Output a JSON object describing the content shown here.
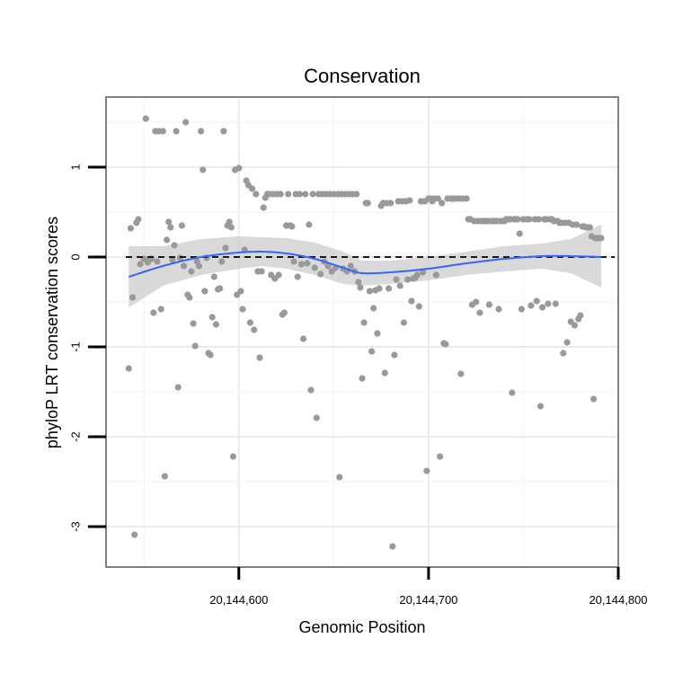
{
  "chart_data": {
    "type": "scatter",
    "title": "Conservation",
    "xlabel": "Genomic Position",
    "ylabel": "phyloP LRT conservation scores",
    "xlim": [
      20144530,
      20144800
    ],
    "ylim": [
      -3.45,
      1.78
    ],
    "x_ticks": [
      {
        "value": 20144600,
        "label": "20,144,600"
      },
      {
        "value": 20144700,
        "label": "20,144,700"
      },
      {
        "value": 20144800,
        "label": "20,144,800"
      }
    ],
    "y_ticks": [
      {
        "value": -3,
        "label": "-3"
      },
      {
        "value": -2,
        "label": "-2"
      },
      {
        "value": -1,
        "label": "-1"
      },
      {
        "value": 0,
        "label": "0"
      },
      {
        "value": 1,
        "label": "1"
      }
    ],
    "reference_line": {
      "y": 0,
      "style": "dashed",
      "color": "#000000"
    },
    "point_color": "#999999",
    "smooth_color": "#3366FF",
    "ribbon_color": "#CCCCCC",
    "points": [
      [
        20144542,
        -1.24
      ],
      [
        20144543,
        0.32
      ],
      [
        20144544,
        -0.45
      ],
      [
        20144545,
        -3.09
      ],
      [
        20144546,
        0.38
      ],
      [
        20144547,
        0.42
      ],
      [
        20144548,
        -0.08
      ],
      [
        20144550,
        -0.02
      ],
      [
        20144551,
        1.54
      ],
      [
        20144552,
        -0.06
      ],
      [
        20144553,
        -0.03
      ],
      [
        20144554,
        -0.02
      ],
      [
        20144555,
        -0.62
      ],
      [
        20144556,
        1.4
      ],
      [
        20144557,
        -0.05
      ],
      [
        20144558,
        1.4
      ],
      [
        20144559,
        -0.58
      ],
      [
        20144560,
        1.4
      ],
      [
        20144561,
        -2.44
      ],
      [
        20144562,
        0.19
      ],
      [
        20144563,
        0.39
      ],
      [
        20144564,
        0.33
      ],
      [
        20144565,
        -0.03
      ],
      [
        20144566,
        0.13
      ],
      [
        20144567,
        1.4
      ],
      [
        20144568,
        -1.45
      ],
      [
        20144569,
        -0.01
      ],
      [
        20144570,
        0.35
      ],
      [
        20144571,
        -0.1
      ],
      [
        20144572,
        1.5
      ],
      [
        20144573,
        -0.42
      ],
      [
        20144574,
        -0.45
      ],
      [
        20144575,
        -0.16
      ],
      [
        20144576,
        -0.74
      ],
      [
        20144577,
        -0.99
      ],
      [
        20144578,
        -0.05
      ],
      [
        20144579,
        -0.1
      ],
      [
        20144580,
        1.4
      ],
      [
        20144581,
        0.97
      ],
      [
        20144582,
        -0.38
      ],
      [
        20144583,
        -0.01
      ],
      [
        20144584,
        -1.07
      ],
      [
        20144585,
        -1.09
      ],
      [
        20144586,
        -0.67
      ],
      [
        20144587,
        -0.22
      ],
      [
        20144588,
        -0.75
      ],
      [
        20144589,
        -0.36
      ],
      [
        20144590,
        -0.35
      ],
      [
        20144591,
        -0.05
      ],
      [
        20144592,
        1.4
      ],
      [
        20144593,
        0.1
      ],
      [
        20144594,
        0.35
      ],
      [
        20144595,
        0.39
      ],
      [
        20144596,
        0.33
      ],
      [
        20144597,
        -2.22
      ],
      [
        20144598,
        0.97
      ],
      [
        20144599,
        -0.42
      ],
      [
        20144600,
        0.99
      ],
      [
        20144601,
        -0.38
      ],
      [
        20144602,
        -0.58
      ],
      [
        20144603,
        0.08
      ],
      [
        20144604,
        0.85
      ],
      [
        20144605,
        0.8
      ],
      [
        20144606,
        -0.73
      ],
      [
        20144607,
        0.76
      ],
      [
        20144608,
        -0.81
      ],
      [
        20144609,
        0.7
      ],
      [
        20144610,
        -0.16
      ],
      [
        20144611,
        -1.12
      ],
      [
        20144612,
        -0.16
      ],
      [
        20144613,
        0.55
      ],
      [
        20144614,
        0.66
      ],
      [
        20144615,
        0.7
      ],
      [
        20144616,
        0.7
      ],
      [
        20144617,
        -0.2
      ],
      [
        20144618,
        0.7
      ],
      [
        20144619,
        -0.24
      ],
      [
        20144620,
        0.7
      ],
      [
        20144621,
        -0.2
      ],
      [
        20144622,
        0.7
      ],
      [
        20144623,
        -0.64
      ],
      [
        20144624,
        -0.62
      ],
      [
        20144625,
        0.35
      ],
      [
        20144626,
        0.7
      ],
      [
        20144627,
        0.35
      ],
      [
        20144628,
        0.34
      ],
      [
        20144629,
        -0.05
      ],
      [
        20144630,
        0.7
      ],
      [
        20144631,
        -0.22
      ],
      [
        20144632,
        0.7
      ],
      [
        20144633,
        -0.08
      ],
      [
        20144634,
        -0.91
      ],
      [
        20144635,
        0.7
      ],
      [
        20144636,
        -0.07
      ],
      [
        20144637,
        0.36
      ],
      [
        20144638,
        -1.48
      ],
      [
        20144639,
        0.7
      ],
      [
        20144640,
        -0.12
      ],
      [
        20144641,
        -1.79
      ],
      [
        20144642,
        0.7
      ],
      [
        20144643,
        -0.19
      ],
      [
        20144644,
        0.7
      ],
      [
        20144645,
        -0.05
      ],
      [
        20144646,
        0.7
      ],
      [
        20144647,
        -0.1
      ],
      [
        20144648,
        0.7
      ],
      [
        20144649,
        -0.16
      ],
      [
        20144650,
        0.7
      ],
      [
        20144651,
        -0.12
      ],
      [
        20144652,
        0.7
      ],
      [
        20144653,
        -2.45
      ],
      [
        20144654,
        0.7
      ],
      [
        20144655,
        -0.13
      ],
      [
        20144656,
        0.7
      ],
      [
        20144657,
        -0.16
      ],
      [
        20144658,
        0.7
      ],
      [
        20144659,
        -0.1
      ],
      [
        20144660,
        0.7
      ],
      [
        20144661,
        -0.16
      ],
      [
        20144662,
        0.7
      ],
      [
        20144663,
        -0.28
      ],
      [
        20144664,
        -0.34
      ],
      [
        20144665,
        -1.35
      ],
      [
        20144666,
        -0.73
      ],
      [
        20144667,
        0.6
      ],
      [
        20144668,
        0.6
      ],
      [
        20144669,
        -0.38
      ],
      [
        20144670,
        -1.05
      ],
      [
        20144671,
        -0.57
      ],
      [
        20144672,
        -0.37
      ],
      [
        20144673,
        -0.85
      ],
      [
        20144674,
        -0.35
      ],
      [
        20144675,
        0.57
      ],
      [
        20144676,
        0.6
      ],
      [
        20144677,
        -1.29
      ],
      [
        20144678,
        0.6
      ],
      [
        20144679,
        -0.35
      ],
      [
        20144680,
        0.6
      ],
      [
        20144681,
        -3.22
      ],
      [
        20144682,
        -1.09
      ],
      [
        20144683,
        -0.25
      ],
      [
        20144684,
        0.62
      ],
      [
        20144685,
        -0.32
      ],
      [
        20144686,
        0.62
      ],
      [
        20144687,
        -0.73
      ],
      [
        20144688,
        0.62
      ],
      [
        20144689,
        -0.25
      ],
      [
        20144690,
        0.63
      ],
      [
        20144691,
        -0.49
      ],
      [
        20144692,
        -0.24
      ],
      [
        20144693,
        -0.23
      ],
      [
        20144694,
        -0.2
      ],
      [
        20144695,
        -0.55
      ],
      [
        20144696,
        0.62
      ],
      [
        20144697,
        -0.17
      ],
      [
        20144698,
        0.62
      ],
      [
        20144699,
        -2.38
      ],
      [
        20144700,
        0.65
      ],
      [
        20144701,
        0.65
      ],
      [
        20144702,
        0.62
      ],
      [
        20144703,
        0.65
      ],
      [
        20144704,
        -0.2
      ],
      [
        20144705,
        0.65
      ],
      [
        20144706,
        -2.22
      ],
      [
        20144707,
        0.6
      ],
      [
        20144708,
        -0.96
      ],
      [
        20144709,
        -0.97
      ],
      [
        20144710,
        0.65
      ],
      [
        20144712,
        0.65
      ],
      [
        20144713,
        0.65
      ],
      [
        20144714,
        0.65
      ],
      [
        20144716,
        0.65
      ],
      [
        20144717,
        -1.3
      ],
      [
        20144718,
        0.65
      ],
      [
        20144720,
        0.65
      ],
      [
        20144721,
        0.42
      ],
      [
        20144722,
        0.42
      ],
      [
        20144723,
        -0.53
      ],
      [
        20144724,
        0.4
      ],
      [
        20144725,
        -0.5
      ],
      [
        20144726,
        0.4
      ],
      [
        20144727,
        -0.62
      ],
      [
        20144728,
        0.4
      ],
      [
        20144729,
        0.4
      ],
      [
        20144730,
        0.4
      ],
      [
        20144731,
        0.4
      ],
      [
        20144732,
        -0.53
      ],
      [
        20144733,
        0.4
      ],
      [
        20144734,
        0.4
      ],
      [
        20144735,
        0.4
      ],
      [
        20144736,
        0.4
      ],
      [
        20144737,
        -0.58
      ],
      [
        20144738,
        0.4
      ],
      [
        20144739,
        0.4
      ],
      [
        20144740,
        0.4
      ],
      [
        20144741,
        0.42
      ],
      [
        20144742,
        0.42
      ],
      [
        20144743,
        0.42
      ],
      [
        20144744,
        -1.51
      ],
      [
        20144745,
        0.42
      ],
      [
        20144746,
        0.42
      ],
      [
        20144747,
        0.42
      ],
      [
        20144748,
        0.26
      ],
      [
        20144749,
        -0.58
      ],
      [
        20144750,
        0.42
      ],
      [
        20144752,
        0.42
      ],
      [
        20144753,
        0.42
      ],
      [
        20144754,
        -0.54
      ],
      [
        20144756,
        0.42
      ],
      [
        20144757,
        -0.49
      ],
      [
        20144758,
        0.42
      ],
      [
        20144759,
        -1.66
      ],
      [
        20144760,
        -0.56
      ],
      [
        20144761,
        0.42
      ],
      [
        20144762,
        0.42
      ],
      [
        20144763,
        -0.52
      ],
      [
        20144764,
        0.42
      ],
      [
        20144765,
        0.42
      ],
      [
        20144766,
        0.4
      ],
      [
        20144767,
        -0.52
      ],
      [
        20144768,
        0.4
      ],
      [
        20144769,
        0.38
      ],
      [
        20144770,
        0.38
      ],
      [
        20144771,
        -1.07
      ],
      [
        20144772,
        0.38
      ],
      [
        20144773,
        -0.95
      ],
      [
        20144774,
        0.38
      ],
      [
        20144775,
        -0.72
      ],
      [
        20144776,
        0.36
      ],
      [
        20144777,
        -0.76
      ],
      [
        20144778,
        0.36
      ],
      [
        20144779,
        -0.69
      ],
      [
        20144780,
        -0.65
      ],
      [
        20144781,
        0.34
      ],
      [
        20144782,
        0.34
      ],
      [
        20144783,
        0.33
      ],
      [
        20144784,
        0.33
      ],
      [
        20144785,
        0.33
      ],
      [
        20144786,
        0.23
      ],
      [
        20144787,
        -1.58
      ],
      [
        20144788,
        0.21
      ],
      [
        20144789,
        0.21
      ],
      [
        20144790,
        0.21
      ],
      [
        20144791,
        0.21
      ]
    ],
    "smooth": {
      "x": [
        20144542,
        20144560,
        20144580,
        20144600,
        20144612,
        20144625,
        20144640,
        20144655,
        20144665,
        20144680,
        20144700,
        20144720,
        20144740,
        20144760,
        20144775,
        20144791
      ],
      "y": [
        -0.22,
        -0.1,
        0.0,
        0.05,
        0.06,
        0.04,
        -0.02,
        -0.12,
        -0.18,
        -0.17,
        -0.13,
        -0.07,
        -0.02,
        0.01,
        0.01,
        0.0
      ],
      "lower": [
        -0.56,
        -0.32,
        -0.2,
        -0.13,
        -0.1,
        -0.13,
        -0.2,
        -0.3,
        -0.32,
        -0.3,
        -0.26,
        -0.2,
        -0.16,
        -0.13,
        -0.18,
        -0.34
      ],
      "upper": [
        0.12,
        0.12,
        0.2,
        0.23,
        0.22,
        0.21,
        0.16,
        0.06,
        -0.04,
        -0.04,
        0.0,
        0.06,
        0.12,
        0.15,
        0.2,
        0.36
      ]
    }
  }
}
